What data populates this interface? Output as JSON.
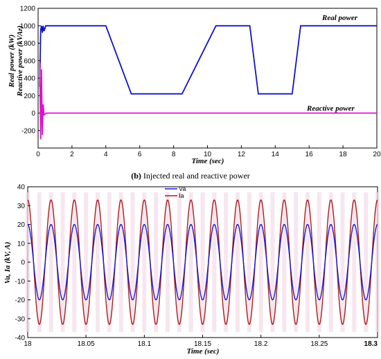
{
  "caption": {
    "label": "(b)",
    "text": " Injected real and reactive power"
  },
  "chart_data": [
    {
      "type": "line",
      "xlabel": "Time (sec)",
      "ylabel": [
        "Real power (kW)",
        "Reactive power (kVAr)"
      ],
      "xlim": [
        0,
        20
      ],
      "ylim": [
        -400,
        1200
      ],
      "xticks": [
        0,
        2,
        4,
        6,
        8,
        10,
        12,
        14,
        16,
        18,
        20
      ],
      "yticks": [
        -200,
        0,
        200,
        400,
        600,
        800,
        1000,
        1200
      ],
      "grid": false,
      "annotations": [
        "Real power",
        "Reactive power"
      ],
      "series": [
        {
          "name": "Real power",
          "color": "#1010d0",
          "x": [
            0.1,
            0.15,
            0.2,
            0.25,
            0.3,
            0.35,
            0.45,
            0.5,
            4.0,
            5.5,
            8.5,
            10.5,
            12.5,
            13.0,
            15.0,
            15.5,
            20.0
          ],
          "y": [
            300,
            950,
            1000,
            920,
            1000,
            940,
            1000,
            1000,
            1000,
            220,
            220,
            1000,
            1000,
            220,
            220,
            1000,
            1000
          ]
        },
        {
          "name": "Reactive power",
          "color": "#e010d0",
          "x": [
            0.1,
            0.15,
            0.2,
            0.25,
            0.3,
            0.35,
            0.5,
            20.0
          ],
          "y": [
            580,
            -300,
            500,
            -250,
            100,
            -20,
            0,
            0
          ]
        }
      ]
    },
    {
      "type": "line",
      "xlabel": "Time (sec)",
      "ylabel": "Va, Ia (kV, A)",
      "xlim": [
        18,
        18.3
      ],
      "ylim": [
        -40,
        40
      ],
      "xticks": [
        "18",
        "18.05",
        "18.1",
        "18.15",
        "18.2",
        "18.25",
        "18.3"
      ],
      "yticks": [
        -40,
        -30,
        -20,
        -10,
        0,
        10,
        20,
        30,
        40
      ],
      "grid": false,
      "legend": "top-left",
      "series": [
        {
          "name": "Va",
          "color": "#1818d8",
          "amplitude": 20,
          "frequency_hz": 50,
          "phase_deg": 0
        },
        {
          "name": "Ia",
          "color": "#b01818",
          "amplitude": 33,
          "frequency_hz": 50,
          "phase_deg": 0
        }
      ]
    }
  ]
}
